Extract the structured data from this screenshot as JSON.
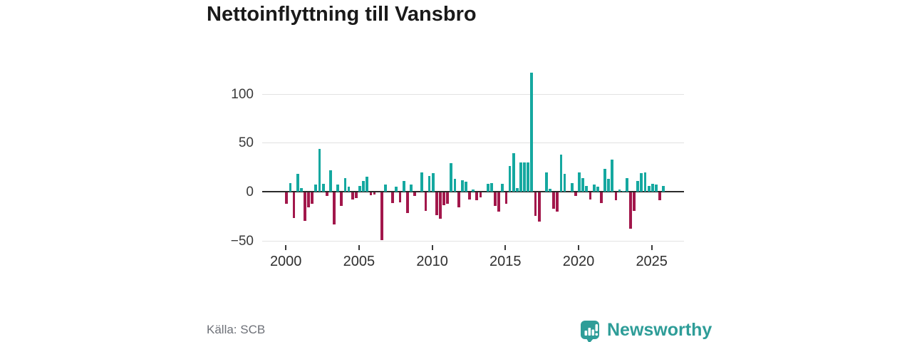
{
  "header": {
    "title": "Nettoinflyttning till Vansbro"
  },
  "footer": {
    "source": "Källa: SCB",
    "brand": "Newsworthy"
  },
  "colors": {
    "positive_bar": "#15a8a0",
    "negative_bar": "#a2174b",
    "brand_teal": "#2e9d98",
    "zero_line": "#2b2b2b",
    "gridline": "#e2e2e2",
    "axis_text": "#3a3a3a",
    "source_text": "#6e7178",
    "title_text": "#1a1a1a"
  },
  "axes": {
    "y_tick_labels": [
      "100",
      "50",
      "0",
      "−50"
    ],
    "x_tick_labels": [
      "2000",
      "2005",
      "2010",
      "2015",
      "2020",
      "2025"
    ]
  },
  "chart_data": {
    "type": "bar",
    "title": "Nettoinflyttning till Vansbro",
    "xlabel": "",
    "ylabel": "",
    "ylim": [
      -55,
      130
    ],
    "y_ticks": [
      100,
      50,
      0,
      -50
    ],
    "x_tick_years": [
      2000,
      2005,
      2010,
      2015,
      2020,
      2025
    ],
    "grid": "horizontal",
    "legend": "none",
    "frequency": "quarterly",
    "quarters": [
      "2000Q1",
      "2000Q2",
      "2000Q3",
      "2000Q4",
      "2001Q1",
      "2001Q2",
      "2001Q3",
      "2001Q4",
      "2002Q1",
      "2002Q2",
      "2002Q3",
      "2002Q4",
      "2003Q1",
      "2003Q2",
      "2003Q3",
      "2003Q4",
      "2004Q1",
      "2004Q2",
      "2004Q3",
      "2004Q4",
      "2005Q1",
      "2005Q2",
      "2005Q3",
      "2005Q4",
      "2006Q1",
      "2006Q2",
      "2006Q3",
      "2006Q4",
      "2007Q1",
      "2007Q2",
      "2007Q3",
      "2007Q4",
      "2008Q1",
      "2008Q2",
      "2008Q3",
      "2008Q4",
      "2009Q1",
      "2009Q2",
      "2009Q3",
      "2009Q4",
      "2010Q1",
      "2010Q2",
      "2010Q3",
      "2010Q4",
      "2011Q1",
      "2011Q2",
      "2011Q3",
      "2011Q4",
      "2012Q1",
      "2012Q2",
      "2012Q3",
      "2012Q4",
      "2013Q1",
      "2013Q2",
      "2013Q3",
      "2013Q4",
      "2014Q1",
      "2014Q2",
      "2014Q3",
      "2014Q4",
      "2015Q1",
      "2015Q2",
      "2015Q3",
      "2015Q4",
      "2016Q1",
      "2016Q2",
      "2016Q3",
      "2016Q4",
      "2017Q1",
      "2017Q2",
      "2017Q3",
      "2017Q4",
      "2018Q1",
      "2018Q2",
      "2018Q3",
      "2018Q4",
      "2019Q1",
      "2019Q2",
      "2019Q3",
      "2019Q4",
      "2020Q1",
      "2020Q2",
      "2020Q3",
      "2020Q4",
      "2021Q1",
      "2021Q2",
      "2021Q3",
      "2021Q4",
      "2022Q1",
      "2022Q2",
      "2022Q3",
      "2022Q4",
      "2023Q1",
      "2023Q2",
      "2023Q3",
      "2023Q4",
      "2024Q1",
      "2024Q2",
      "2024Q3",
      "2024Q4",
      "2025Q1",
      "2025Q2",
      "2025Q3",
      "2025Q4"
    ],
    "values": [
      -12,
      9,
      -26,
      18,
      4,
      -29,
      -15,
      -12,
      7,
      44,
      8,
      -4,
      22,
      -33,
      7,
      -14,
      14,
      5,
      -7,
      -6,
      6,
      11,
      15,
      -3,
      -2,
      0,
      -49,
      7,
      0,
      -11,
      5,
      -10,
      11,
      -21,
      7,
      -4,
      0,
      20,
      -19,
      16,
      19,
      -23,
      -27,
      -13,
      -12,
      29,
      13,
      -15,
      12,
      10,
      -7,
      2,
      -8,
      -5,
      0,
      8,
      9,
      -14,
      -20,
      8,
      -12,
      26,
      39,
      4,
      30,
      30,
      30,
      122,
      -24,
      -30,
      0,
      20,
      3,
      -17,
      -20,
      38,
      18,
      0,
      9,
      -4,
      20,
      14,
      6,
      -7,
      7,
      5,
      -11,
      23,
      13,
      33,
      -8,
      2,
      1,
      14,
      -37,
      -19,
      11,
      19,
      20,
      6,
      8,
      7,
      -8,
      6
    ]
  }
}
